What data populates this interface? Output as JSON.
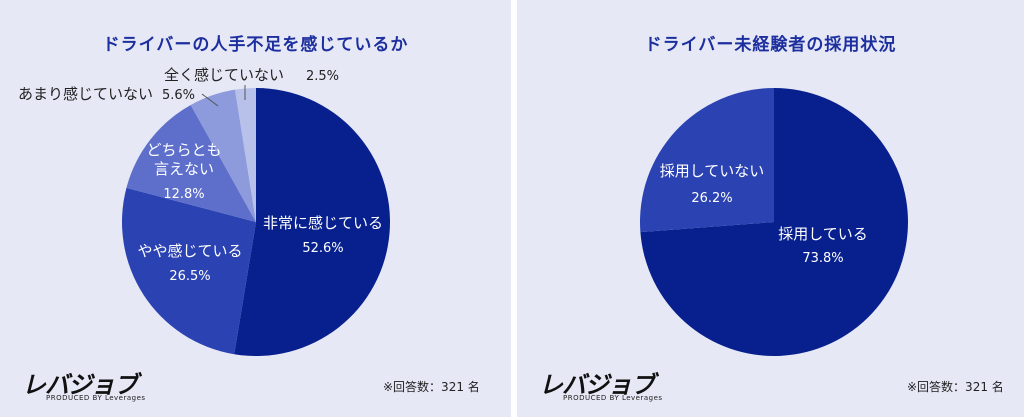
{
  "brand": {
    "logo_text": "レバジョブ",
    "logo_sub": "PRODUCED BY Leverages"
  },
  "colors": {
    "panel_bg": "#e6e8f6",
    "title": "#1d2f9e",
    "slices": [
      "#08208d",
      "#2b42b2",
      "#5d6fcb",
      "#8d9bdc",
      "#b7c1ea"
    ]
  },
  "chart_data": [
    {
      "type": "pie",
      "title": "ドライバーの人手不足を感じているか",
      "note": "※回答数：321 名",
      "slices": [
        {
          "name": "非常に感じている",
          "value": 52.6,
          "label": "52.6%"
        },
        {
          "name": "やや感じている",
          "value": 26.5,
          "label": "26.5%"
        },
        {
          "name": "どちらとも言えない",
          "value": 12.8,
          "label": "12.8%"
        },
        {
          "name": "あまり感じていない",
          "value": 5.6,
          "label": "5.6%"
        },
        {
          "name": "全く感じていない",
          "value": 2.5,
          "label": "2.5%"
        }
      ]
    },
    {
      "type": "pie",
      "title": "ドライバー未経験者の採用状況",
      "note": "※回答数：321 名",
      "slices": [
        {
          "name": "採用している",
          "value": 73.8,
          "label": "73.8%"
        },
        {
          "name": "採用していない",
          "value": 26.2,
          "label": "26.2%"
        }
      ]
    }
  ]
}
